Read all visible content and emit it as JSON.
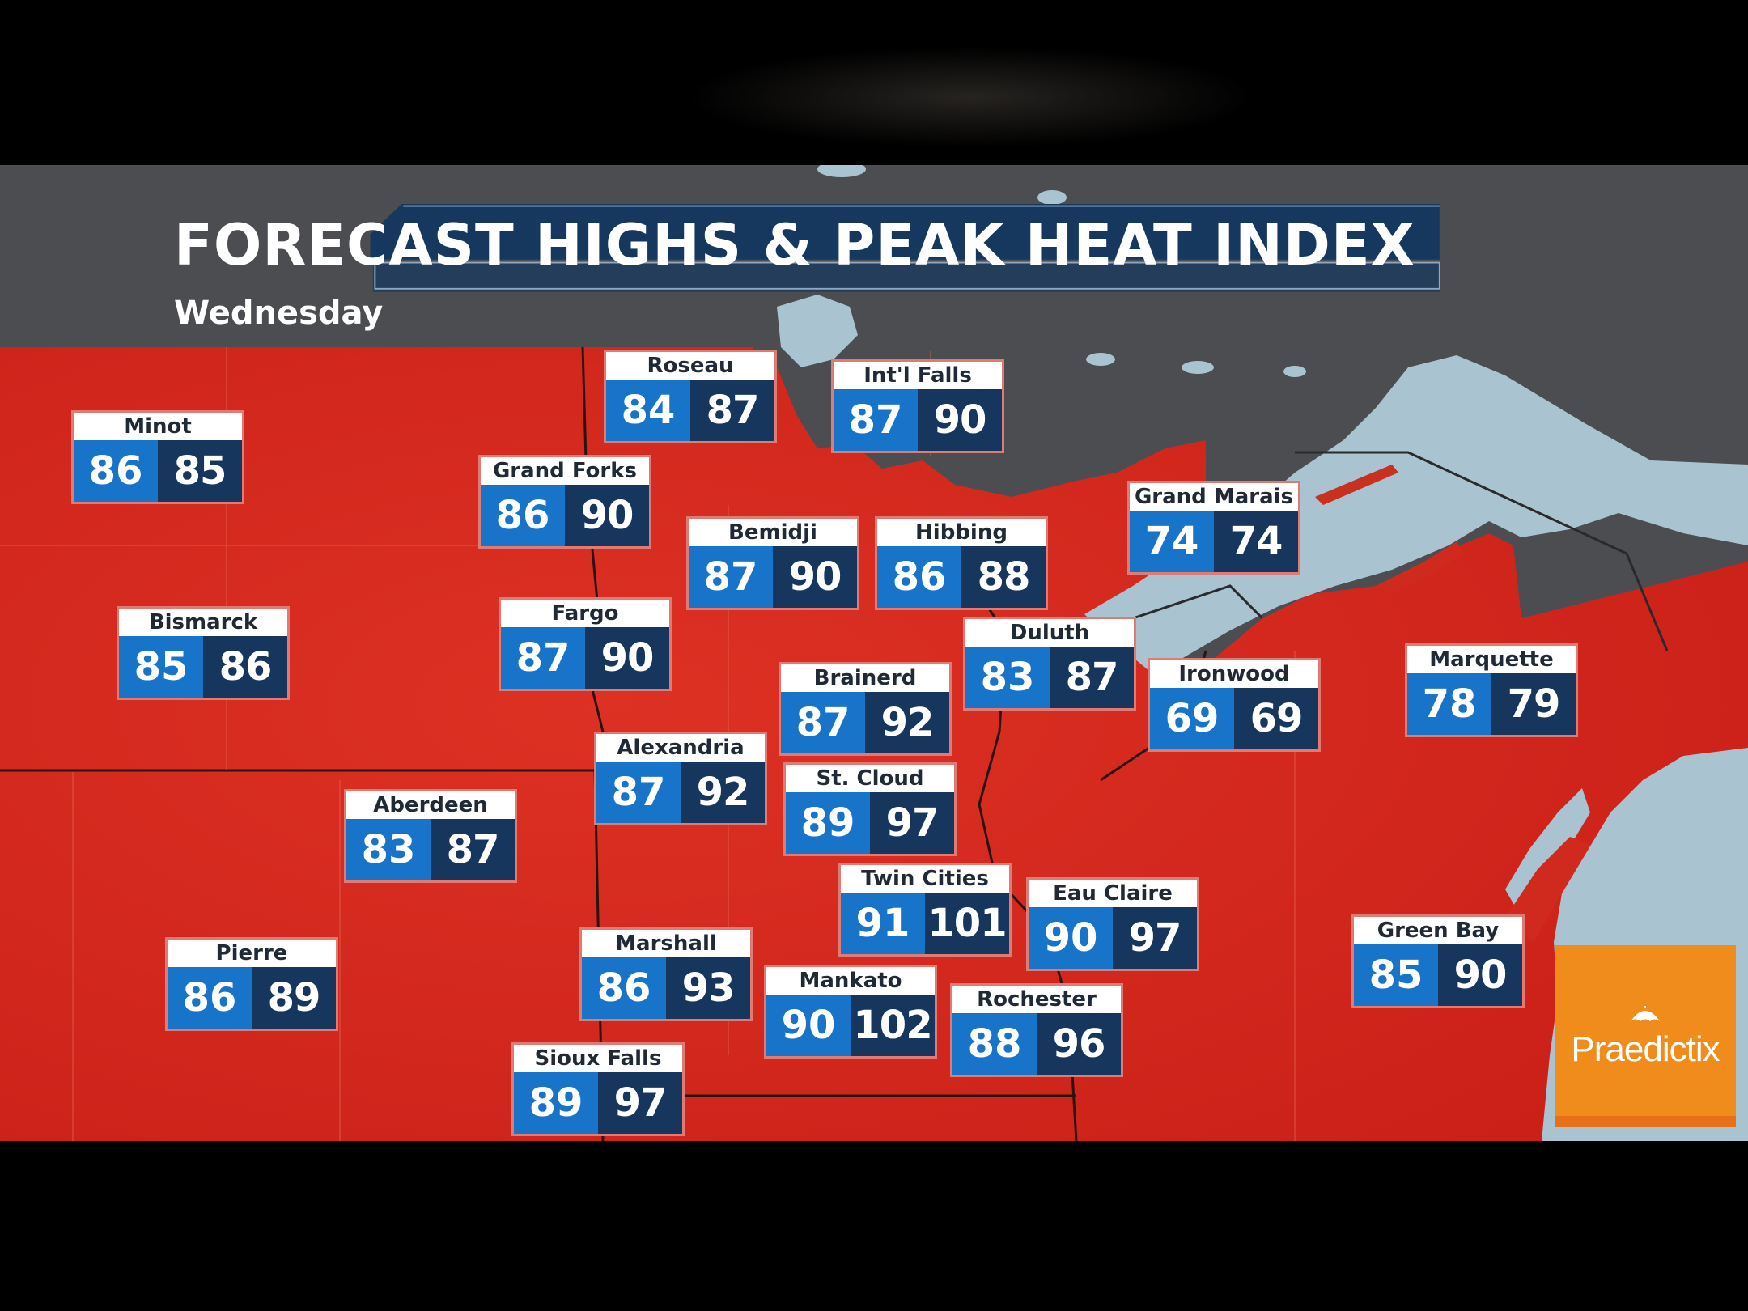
{
  "title": "FORECAST HIGHS & PEAK HEAT INDEX",
  "subtitle": "Wednesday",
  "brand": "Praedictix",
  "colors": {
    "high_box": "#1874c9",
    "heat_index_box": "#17365e",
    "heat_fill": "#d8261c",
    "water": "#a9c3d1",
    "banner": "#16385f",
    "logo": "#f08c1c"
  },
  "cities": [
    {
      "name": "Roseau",
      "high": "84",
      "heat_index": "87"
    },
    {
      "name": "Int'l Falls",
      "high": "87",
      "heat_index": "90"
    },
    {
      "name": "Minot",
      "high": "86",
      "heat_index": "85"
    },
    {
      "name": "Grand Forks",
      "high": "86",
      "heat_index": "90"
    },
    {
      "name": "Bemidji",
      "high": "87",
      "heat_index": "90"
    },
    {
      "name": "Hibbing",
      "high": "86",
      "heat_index": "88"
    },
    {
      "name": "Grand Marais",
      "high": "74",
      "heat_index": "74"
    },
    {
      "name": "Bismarck",
      "high": "85",
      "heat_index": "86"
    },
    {
      "name": "Fargo",
      "high": "87",
      "heat_index": "90"
    },
    {
      "name": "Duluth",
      "high": "83",
      "heat_index": "87"
    },
    {
      "name": "Brainerd",
      "high": "87",
      "heat_index": "92"
    },
    {
      "name": "Ironwood",
      "high": "69",
      "heat_index": "69"
    },
    {
      "name": "Marquette",
      "high": "78",
      "heat_index": "79"
    },
    {
      "name": "Alexandria",
      "high": "87",
      "heat_index": "92"
    },
    {
      "name": "St. Cloud",
      "high": "89",
      "heat_index": "97"
    },
    {
      "name": "Aberdeen",
      "high": "83",
      "heat_index": "87"
    },
    {
      "name": "Twin Cities",
      "high": "91",
      "heat_index": "101"
    },
    {
      "name": "Eau Claire",
      "high": "90",
      "heat_index": "97"
    },
    {
      "name": "Green Bay",
      "high": "85",
      "heat_index": "90"
    },
    {
      "name": "Marshall",
      "high": "86",
      "heat_index": "93"
    },
    {
      "name": "Pierre",
      "high": "86",
      "heat_index": "89"
    },
    {
      "name": "Mankato",
      "high": "90",
      "heat_index": "102"
    },
    {
      "name": "Rochester",
      "high": "88",
      "heat_index": "96"
    },
    {
      "name": "Sioux Falls",
      "high": "89",
      "heat_index": "97"
    }
  ]
}
